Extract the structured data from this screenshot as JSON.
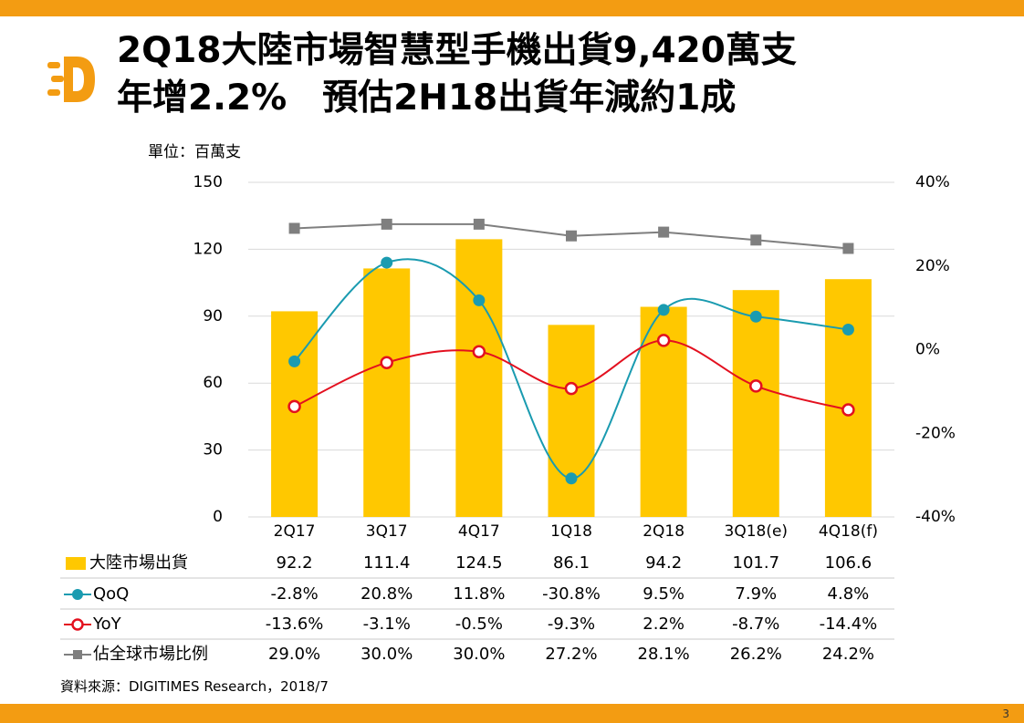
{
  "header": {
    "title_line1": "2Q18大陸市場智慧型手機出貨9,420萬支",
    "title_line2": "年增2.2%　預估2H18出貨年減約1成"
  },
  "page_number": "3",
  "colors": {
    "accent": "#F39C12",
    "bar": "#FFC800",
    "qoq": "#1A9BB0",
    "yoy": "#E3101F",
    "share": "#7F7F7F",
    "grid": "#D9D9D9"
  },
  "chart_data": {
    "type": "bar",
    "unit_label": "單位：百萬支",
    "categories": [
      "2Q17",
      "3Q17",
      "4Q17",
      "1Q18",
      "2Q18",
      "3Q18(e)",
      "4Q18(f)"
    ],
    "y_left": {
      "range": [
        0,
        150
      ],
      "ticks": [
        "0",
        "30",
        "60",
        "90",
        "120",
        "150"
      ]
    },
    "y_right": {
      "range": [
        -40,
        40
      ],
      "ticks": [
        "-40%",
        "-20%",
        "0%",
        "20%",
        "40%"
      ]
    },
    "grid": true,
    "series": [
      {
        "name": "大陸市場出貨",
        "kind": "bar",
        "axis": "left",
        "values": [
          92.2,
          111.4,
          124.5,
          86.1,
          94.2,
          101.7,
          106.6
        ],
        "labels": [
          "92.2",
          "111.4",
          "124.5",
          "86.1",
          "94.2",
          "101.7",
          "106.6"
        ]
      },
      {
        "name": "QoQ",
        "kind": "line-smooth",
        "axis": "right",
        "values": [
          -2.8,
          20.8,
          11.8,
          -30.8,
          9.5,
          7.9,
          4.8
        ],
        "labels": [
          "-2.8%",
          "20.8%",
          "11.8%",
          "-30.8%",
          "9.5%",
          "7.9%",
          "4.8%"
        ]
      },
      {
        "name": "YoY",
        "kind": "line-smooth",
        "axis": "right",
        "values": [
          -13.6,
          -3.1,
          -0.5,
          -9.3,
          2.2,
          -8.7,
          -14.4
        ],
        "labels": [
          "-13.6%",
          "-3.1%",
          "-0.5%",
          "-9.3%",
          "2.2%",
          "-8.7%",
          "-14.4%"
        ]
      },
      {
        "name": "佔全球市場比例",
        "kind": "line",
        "axis": "right",
        "values": [
          29.0,
          30.0,
          30.0,
          27.2,
          28.1,
          26.2,
          24.2
        ],
        "labels": [
          "29.0%",
          "30.0%",
          "30.0%",
          "27.2%",
          "28.1%",
          "26.2%",
          "24.2%"
        ]
      }
    ]
  },
  "source": "資料來源：DIGITIMES Research，2018/7"
}
